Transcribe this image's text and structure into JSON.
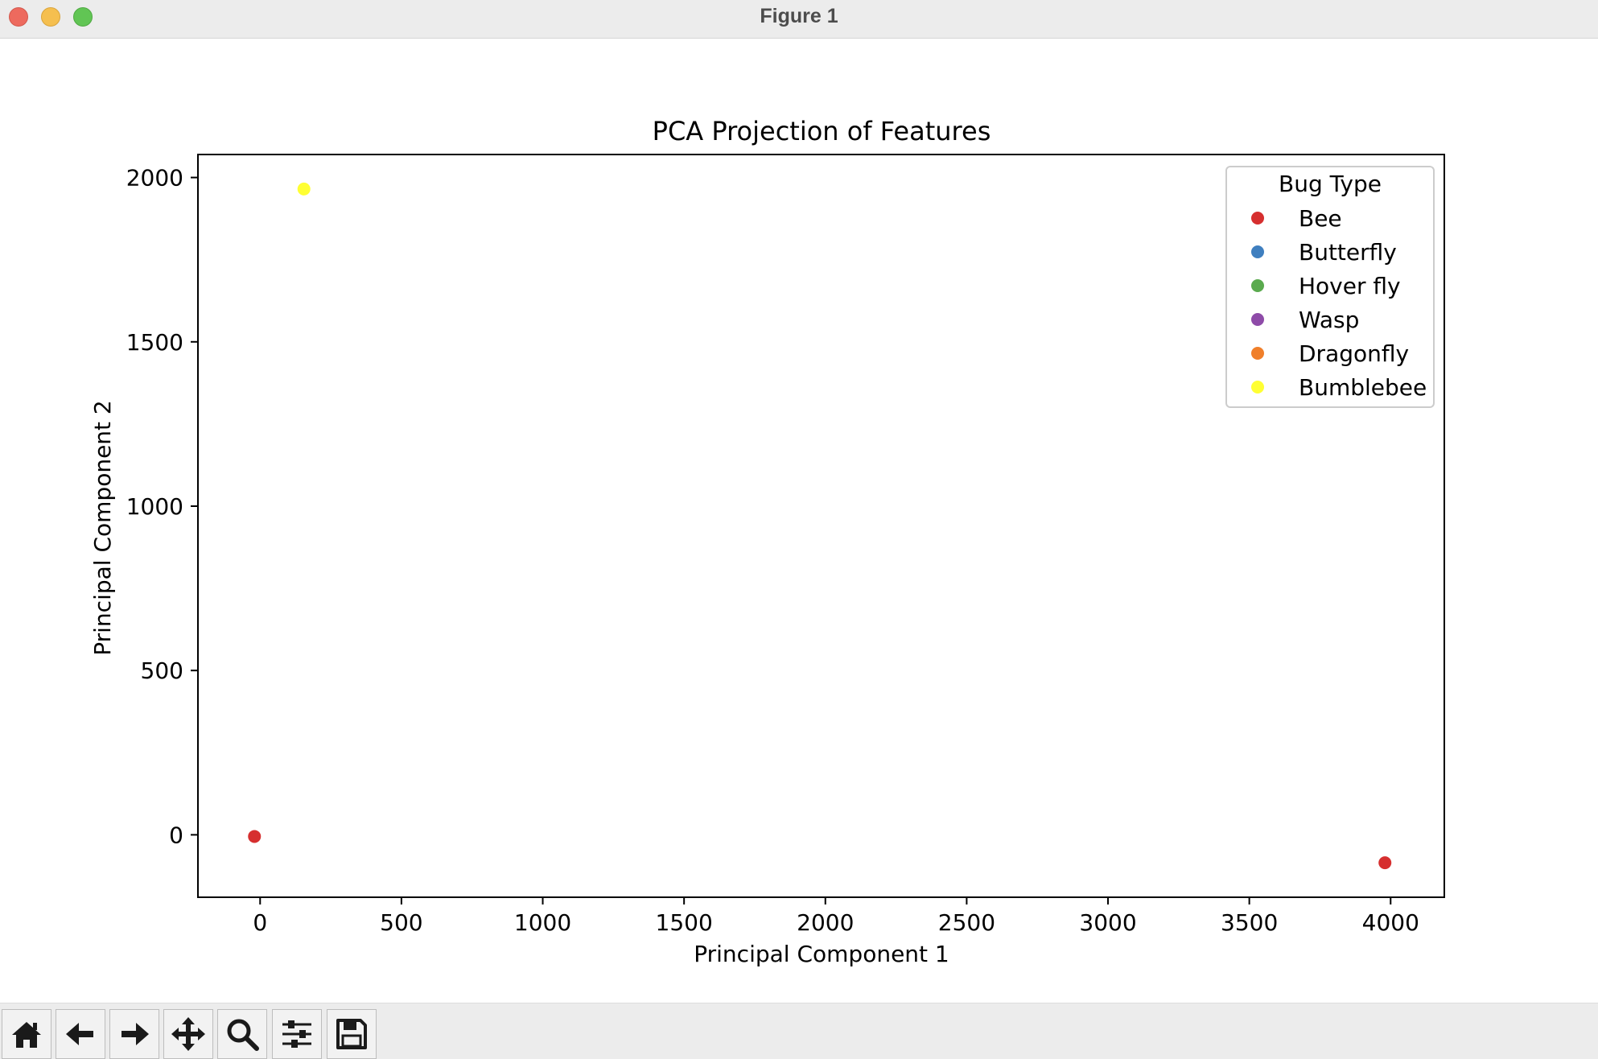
{
  "window": {
    "title": "Figure 1"
  },
  "toolbar": {
    "buttons": [
      {
        "name": "home-button",
        "icon": "home-icon"
      },
      {
        "name": "back-button",
        "icon": "arrow-left-icon"
      },
      {
        "name": "forward-button",
        "icon": "arrow-right-icon"
      },
      {
        "name": "pan-button",
        "icon": "move-icon"
      },
      {
        "name": "zoom-button",
        "icon": "search-icon"
      },
      {
        "name": "configure-subplots-button",
        "icon": "sliders-icon"
      },
      {
        "name": "save-button",
        "icon": "save-icon"
      }
    ]
  },
  "chart_data": {
    "type": "scatter",
    "title": "PCA Projection of Features",
    "xlabel": "Principal Component 1",
    "ylabel": "Principal Component 2",
    "xlim": [
      -220,
      4190
    ],
    "ylim": [
      -190,
      2070
    ],
    "xticks": [
      0,
      500,
      1000,
      1500,
      2000,
      2500,
      3000,
      3500,
      4000
    ],
    "yticks": [
      0,
      500,
      1000,
      1500,
      2000
    ],
    "grid": false,
    "legend": {
      "title": "Bug Type",
      "position": "top-right"
    },
    "series": [
      {
        "name": "Bee",
        "color": "#d62f2f",
        "points": [
          [
            -20,
            -5
          ],
          [
            3980,
            -85
          ]
        ]
      },
      {
        "name": "Butterfly",
        "color": "#3f7fbf",
        "points": []
      },
      {
        "name": "Hover fly",
        "color": "#5aaa4e",
        "points": []
      },
      {
        "name": "Wasp",
        "color": "#8e4ba8",
        "points": []
      },
      {
        "name": "Dragonfly",
        "color": "#f07f2a",
        "points": []
      },
      {
        "name": "Bumblebee",
        "color": "#ffff33",
        "points": [
          [
            155,
            1965
          ]
        ]
      }
    ]
  }
}
